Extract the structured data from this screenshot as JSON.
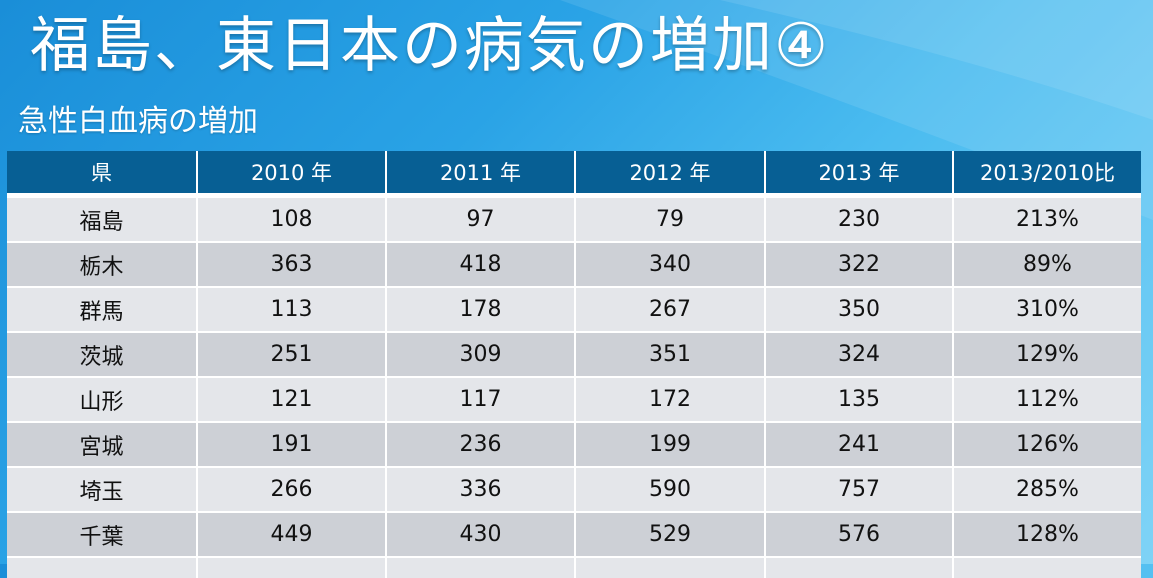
{
  "slide": {
    "title": "福島、東日本の病気の増加④",
    "subtitle": "急性白血病の増加"
  },
  "table": {
    "headers": [
      "県",
      "2010 年",
      "2011 年",
      "2012 年",
      "2013 年",
      "2013/2010比"
    ],
    "rows": [
      [
        "福島",
        "108",
        "97",
        "79",
        "230",
        "213%"
      ],
      [
        "栃木",
        "363",
        "418",
        "340",
        "322",
        "89%"
      ],
      [
        "群馬",
        "113",
        "178",
        "267",
        "350",
        "310%"
      ],
      [
        "茨城",
        "251",
        "309",
        "351",
        "324",
        "129%"
      ],
      [
        "山形",
        "121",
        "117",
        "172",
        "135",
        "112%"
      ],
      [
        "宮城",
        "191",
        "236",
        "199",
        "241",
        "126%"
      ],
      [
        "埼玉",
        "266",
        "336",
        "590",
        "757",
        "285%"
      ],
      [
        "千葉",
        "449",
        "430",
        "529",
        "576",
        "128%"
      ]
    ]
  },
  "colors": {
    "header_bg": "#075f94",
    "row_light": "#e4e6ea",
    "row_dark": "#cdd0d6",
    "background": "#2aa3e6"
  }
}
